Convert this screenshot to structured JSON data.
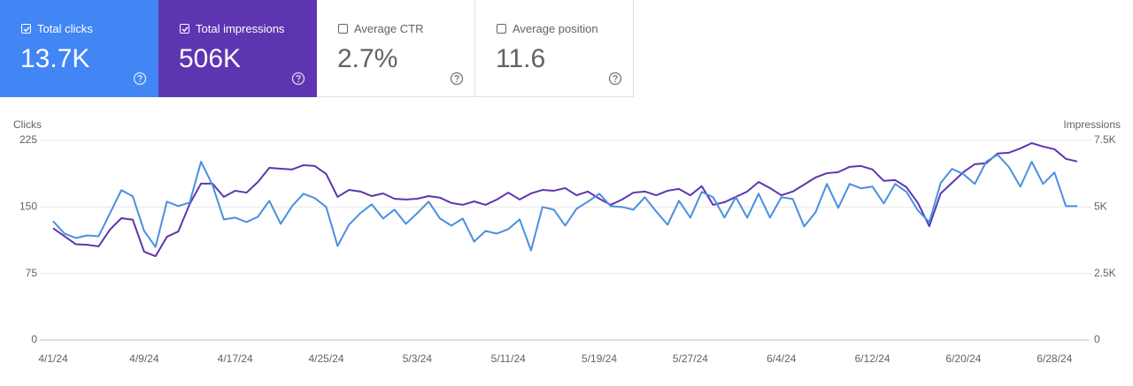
{
  "metrics": [
    {
      "label": "Total clicks",
      "value": "13.7K",
      "checked": true,
      "color": "#4285f4"
    },
    {
      "label": "Total impressions",
      "value": "506K",
      "checked": true,
      "color": "#5e35b1"
    },
    {
      "label": "Average CTR",
      "value": "2.7%",
      "checked": false,
      "color": "#ffffff"
    },
    {
      "label": "Average position",
      "value": "11.6",
      "checked": false,
      "color": "#ffffff"
    }
  ],
  "chart_data": {
    "type": "line",
    "y_label": "Clicks",
    "y2_label": "Impressions",
    "categories": [
      "4/1/24",
      null,
      null,
      null,
      null,
      null,
      null,
      null,
      "4/9/24",
      null,
      null,
      null,
      null,
      null,
      null,
      null,
      "4/17/24",
      null,
      null,
      null,
      null,
      null,
      null,
      null,
      "4/25/24",
      null,
      null,
      null,
      null,
      null,
      null,
      null,
      "5/3/24",
      null,
      null,
      null,
      null,
      null,
      null,
      null,
      "5/11/24",
      null,
      null,
      null,
      null,
      null,
      null,
      null,
      "5/19/24",
      null,
      null,
      null,
      null,
      null,
      null,
      null,
      "5/27/24",
      null,
      null,
      null,
      null,
      null,
      null,
      null,
      "6/4/24",
      null,
      null,
      null,
      null,
      null,
      null,
      null,
      "6/12/24",
      null,
      null,
      null,
      null,
      null,
      null,
      null,
      "6/20/24",
      null,
      null,
      null,
      null,
      null,
      null,
      null,
      "6/28/24",
      null,
      null
    ],
    "series": [
      {
        "color": "#5e35b1",
        "axis": "y2",
        "values": [
          4200,
          3900,
          3600,
          3580,
          3520,
          4150,
          4580,
          4520,
          3320,
          3150,
          3880,
          4080,
          5110,
          5880,
          5880,
          5380,
          5610,
          5540,
          5940,
          6470,
          6440,
          6410,
          6570,
          6540,
          6240,
          5380,
          5640,
          5580,
          5410,
          5510,
          5310,
          5280,
          5310,
          5410,
          5350,
          5150,
          5080,
          5210,
          5080,
          5280,
          5540,
          5280,
          5510,
          5640,
          5610,
          5710,
          5440,
          5580,
          5310,
          5080,
          5280,
          5540,
          5580,
          5440,
          5610,
          5680,
          5440,
          5780,
          5080,
          5180,
          5380,
          5580,
          5940,
          5710,
          5440,
          5580,
          5840,
          6110,
          6270,
          6310,
          6510,
          6540,
          6410,
          5980,
          6010,
          5740,
          5150,
          4280,
          5510,
          5910,
          6310,
          6610,
          6640,
          7010,
          7040,
          7200,
          7400,
          7270,
          7170,
          6810,
          6710
        ]
      },
      {
        "color": "#4a8fe0",
        "values": [
          134,
          120,
          115,
          118,
          117,
          143,
          169,
          162,
          123,
          105,
          156,
          151,
          155,
          201,
          175,
          136,
          138,
          133,
          139,
          157,
          131,
          151,
          165,
          160,
          150,
          106,
          130,
          143,
          153,
          137,
          147,
          131,
          143,
          156,
          137,
          129,
          137,
          111,
          123,
          120,
          125,
          136,
          101,
          150,
          147,
          129,
          148,
          156,
          165,
          151,
          150,
          147,
          161,
          145,
          130,
          157,
          138,
          167,
          161,
          138,
          161,
          138,
          165,
          138,
          161,
          159,
          128,
          144,
          176,
          149,
          176,
          171,
          173,
          154,
          176,
          167,
          146,
          133,
          177,
          193,
          187,
          176,
          201,
          209,
          195,
          173,
          201,
          176,
          189,
          151,
          151
        ]
      }
    ],
    "ylim": [
      0,
      225
    ],
    "yticks": [
      0,
      75,
      150,
      225
    ],
    "y2lim": [
      0,
      7500
    ],
    "y2ticks": [
      0,
      {
        "value": 2500,
        "label": "2.5K"
      },
      {
        "value": 5000,
        "label": "5K"
      },
      {
        "value": 7500,
        "label": "7.5K"
      }
    ],
    "grid": true
  }
}
